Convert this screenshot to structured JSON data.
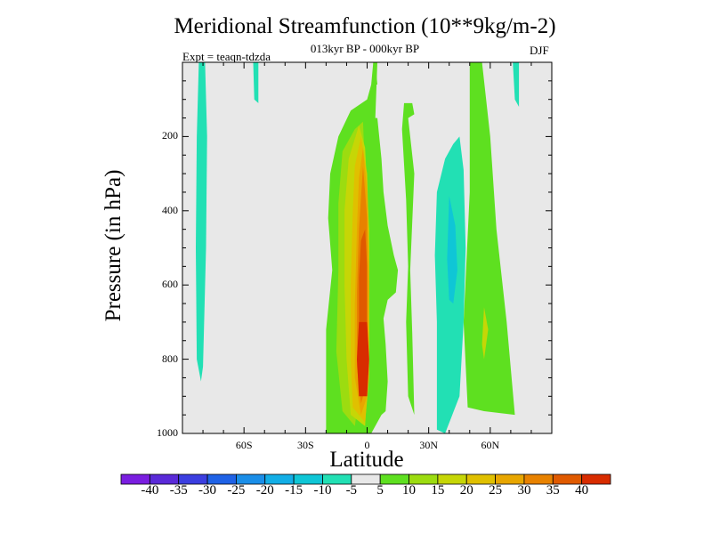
{
  "chart_data": {
    "type": "heatmap",
    "title": "Meridional Streamfunction (10**9kg/m-2)",
    "subtitle": "013kyr BP - 000kyr BP",
    "experiment": "Expt = teaqn-tdzda",
    "season": "DJF",
    "xlabel": "Latitude",
    "ylabel": "Pressure (in hPa)",
    "xlim": [
      -90,
      90
    ],
    "ylim": [
      1000,
      0
    ],
    "x_ticks": [
      {
        "value": -60,
        "label": "60S"
      },
      {
        "value": -30,
        "label": "30S"
      },
      {
        "value": 0,
        "label": "0"
      },
      {
        "value": 30,
        "label": "30N"
      },
      {
        "value": 60,
        "label": "60N"
      }
    ],
    "y_ticks": [
      {
        "value": 200,
        "label": "200"
      },
      {
        "value": 400,
        "label": "400"
      },
      {
        "value": 600,
        "label": "600"
      },
      {
        "value": 800,
        "label": "800"
      },
      {
        "value": 1000,
        "label": "1000"
      }
    ],
    "colorbar": {
      "colors": [
        "#7a1ee0",
        "#5a2ad8",
        "#3b3ee0",
        "#1f62e6",
        "#1a8ee8",
        "#12aee6",
        "#0fc6d6",
        "#22e0b4",
        "#e8e8e8",
        "#5ee020",
        "#9cdc10",
        "#c6d606",
        "#e0c000",
        "#e8a600",
        "#e88200",
        "#e05a00",
        "#d82c00"
      ],
      "labels": [
        "-40",
        "-35",
        "-30",
        "-25",
        "-20",
        "-15",
        "-10",
        "-5",
        "5",
        "10",
        "15",
        "20",
        "25",
        "30",
        "35",
        "40"
      ]
    },
    "contour_regions": [
      {
        "name": "sh-high-lat-cell",
        "level": "-10 to -5",
        "polygon": [
          [
            -82,
            0
          ],
          [
            -79,
            0
          ],
          [
            -78,
            200
          ],
          [
            -78.5,
            500
          ],
          [
            -80,
            820
          ],
          [
            -81,
            860
          ],
          [
            -83,
            800
          ],
          [
            -83.5,
            500
          ],
          [
            -83,
            200
          ]
        ]
      },
      {
        "name": "sh-small-cell",
        "level": "-10 to -5",
        "polygon": [
          [
            -55.5,
            0
          ],
          [
            -53,
            0
          ],
          [
            -53,
            110
          ],
          [
            -55,
            100
          ]
        ]
      },
      {
        "name": "equatorial-band",
        "level": "5 to 10",
        "polygon": [
          [
            3,
            0
          ],
          [
            5,
            0
          ],
          [
            4,
            150
          ],
          [
            5,
            150
          ],
          [
            7,
            260
          ],
          [
            8,
            350
          ],
          [
            10,
            440
          ],
          [
            13,
            520
          ],
          [
            15,
            560
          ],
          [
            14,
            620
          ],
          [
            10,
            640
          ],
          [
            8,
            690
          ],
          [
            9,
            760
          ],
          [
            10,
            860
          ],
          [
            9,
            940
          ],
          [
            7,
            950
          ],
          [
            2,
            1000
          ],
          [
            -20,
            1000
          ],
          [
            -20,
            950
          ],
          [
            -20,
            720
          ],
          [
            -17,
            560
          ],
          [
            -19,
            420
          ],
          [
            -18,
            300
          ],
          [
            -14,
            200
          ],
          [
            -8,
            130
          ],
          [
            0,
            100
          ],
          [
            2,
            60
          ]
        ]
      },
      {
        "name": "nh-subtropical-green",
        "level": "5 to 10",
        "polygon": [
          [
            18,
            110
          ],
          [
            22,
            110
          ],
          [
            23,
            140
          ],
          [
            20,
            150
          ],
          [
            23,
            300
          ],
          [
            21,
            560
          ],
          [
            22,
            730
          ],
          [
            23,
            950
          ],
          [
            20,
            900
          ],
          [
            19,
            700
          ],
          [
            20,
            550
          ],
          [
            19,
            370
          ],
          [
            17,
            180
          ]
        ]
      },
      {
        "name": "nh-subtropical-band",
        "level": "-10 to -5",
        "polygon": [
          [
            45,
            200
          ],
          [
            47,
            290
          ],
          [
            48,
            500
          ],
          [
            47,
            700
          ],
          [
            45,
            900
          ],
          [
            38,
            1000
          ],
          [
            34,
            990
          ],
          [
            34,
            700
          ],
          [
            33,
            520
          ],
          [
            34,
            350
          ],
          [
            38,
            260
          ],
          [
            42,
            220
          ]
        ]
      },
      {
        "name": "nh-core",
        "level": "-15 to -10",
        "polygon": [
          [
            40,
            360
          ],
          [
            43,
            440
          ],
          [
            44,
            560
          ],
          [
            42,
            650
          ],
          [
            40,
            640
          ],
          [
            39,
            530
          ]
        ]
      },
      {
        "name": "nh-high-lat-band",
        "level": "5 to 10",
        "polygon": [
          [
            50,
            0
          ],
          [
            56,
            0
          ],
          [
            60,
            200
          ],
          [
            63,
            450
          ],
          [
            68,
            700
          ],
          [
            72,
            950
          ],
          [
            57,
            940
          ],
          [
            49,
            930
          ],
          [
            47,
            700
          ],
          [
            50,
            350
          ]
        ]
      },
      {
        "name": "nh-cell-5",
        "level": "15 to 20",
        "polygon": [
          [
            57,
            660
          ],
          [
            59,
            720
          ],
          [
            57,
            800
          ],
          [
            56,
            760
          ]
        ]
      },
      {
        "name": "nh-small-cell",
        "level": "-10 to -5",
        "polygon": [
          [
            71,
            0
          ],
          [
            74,
            0
          ],
          [
            74,
            120
          ],
          [
            72,
            100
          ]
        ]
      },
      {
        "name": "sh-subtropical-yellow",
        "level": "10 to 15",
        "polygon": [
          [
            -6,
            180
          ],
          [
            -2,
            160
          ],
          [
            -1,
            300
          ],
          [
            0,
            500
          ],
          [
            -2,
            760
          ],
          [
            -4,
            900
          ],
          [
            -6,
            980
          ],
          [
            -12,
            940
          ],
          [
            -15,
            780
          ],
          [
            -14,
            560
          ],
          [
            -14,
            380
          ],
          [
            -12,
            240
          ]
        ]
      },
      {
        "name": "inner-15-20",
        "level": "15 to 20",
        "polygon": [
          [
            -4,
            170
          ],
          [
            -1,
            230
          ],
          [
            1,
            450
          ],
          [
            1,
            800
          ],
          [
            -1,
            980
          ],
          [
            -8,
            950
          ],
          [
            -10,
            800
          ],
          [
            -11,
            600
          ],
          [
            -11,
            400
          ],
          [
            -9,
            260
          ]
        ]
      },
      {
        "name": "inner-20-25",
        "level": "20 to 25",
        "polygon": [
          [
            -3,
            200
          ],
          [
            0,
            300
          ],
          [
            1,
            500
          ],
          [
            1,
            850
          ],
          [
            -1,
            970
          ],
          [
            -7,
            930
          ],
          [
            -8,
            800
          ],
          [
            -8,
            600
          ],
          [
            -7,
            400
          ],
          [
            -6,
            280
          ]
        ]
      },
      {
        "name": "inner-25-30",
        "level": "25 to 30",
        "polygon": [
          [
            -2,
            230
          ],
          [
            0,
            350
          ],
          [
            1,
            600
          ],
          [
            0,
            900
          ],
          [
            -3,
            950
          ],
          [
            -6,
            850
          ],
          [
            -6,
            650
          ],
          [
            -5,
            450
          ],
          [
            -4,
            310
          ]
        ]
      },
      {
        "name": "inner-30-35",
        "level": "30 to 35",
        "polygon": [
          [
            -2,
            280
          ],
          [
            0,
            420
          ],
          [
            0,
            620
          ],
          [
            0,
            860
          ],
          [
            -3,
            920
          ],
          [
            -5,
            820
          ],
          [
            -5,
            620
          ],
          [
            -4,
            450
          ]
        ]
      },
      {
        "name": "core-35-40",
        "level": "35 to 40",
        "polygon": [
          [
            -1,
            450
          ],
          [
            0,
            550
          ],
          [
            0,
            760
          ],
          [
            -1,
            880
          ],
          [
            -3,
            870
          ],
          [
            -4,
            760
          ],
          [
            -4,
            580
          ],
          [
            -3,
            480
          ]
        ]
      },
      {
        "name": "south-dark-core",
        "level": "above 40",
        "polygon": [
          [
            0,
            700
          ],
          [
            1,
            800
          ],
          [
            0,
            900
          ],
          [
            -4,
            900
          ],
          [
            -5,
            800
          ],
          [
            -4,
            700
          ]
        ]
      },
      {
        "name": "north-tip",
        "level": "5 to 10",
        "polygon": [
          [
            3,
            0
          ],
          [
            4,
            0
          ],
          [
            5,
            60
          ],
          [
            3,
            60
          ]
        ]
      }
    ]
  }
}
